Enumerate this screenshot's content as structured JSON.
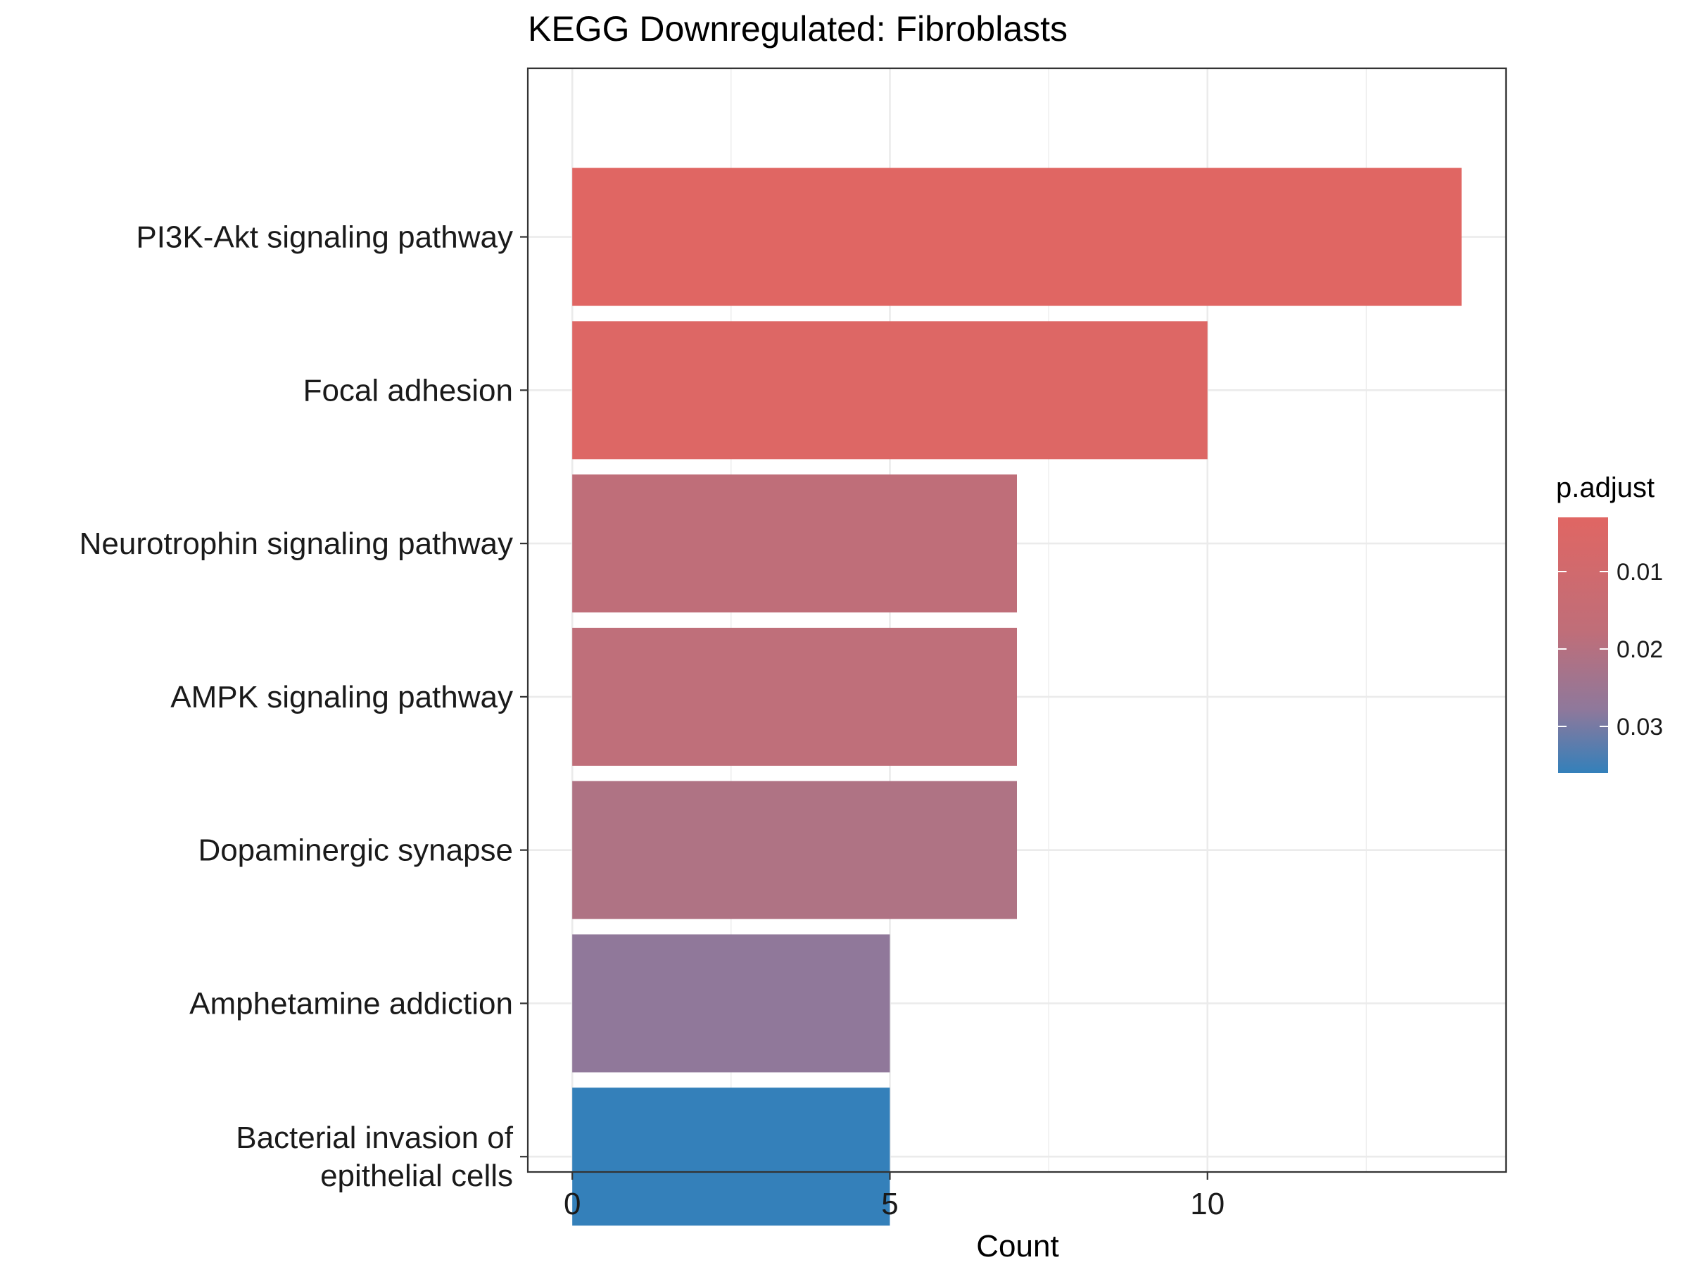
{
  "chart_data": {
    "type": "bar",
    "orientation": "horizontal",
    "title": "KEGG Downregulated: Fibroblasts",
    "xlabel": "Count",
    "ylabel": "",
    "xlim": [
      -0.7,
      14.7
    ],
    "x_ticks": [
      0,
      5,
      10
    ],
    "grid": true,
    "categories": [
      "PI3K-Akt signaling pathway",
      "Focal adhesion",
      "Neurotrophin signaling pathway",
      "AMPK signaling pathway",
      "Dopaminergic synapse",
      "Amphetamine addiction",
      "Bacterial invasion of\nepithelial cells"
    ],
    "values": [
      14,
      10,
      7,
      7,
      7,
      5,
      5
    ],
    "p_adjust": [
      0.003,
      0.005,
      0.012,
      0.012,
      0.014,
      0.021,
      0.036
    ],
    "colors": [
      "#E06663",
      "#DD6765",
      "#BF6E79",
      "#BF6F7A",
      "#AF7384",
      "#90789A",
      "#3480BA"
    ],
    "legend": {
      "title": "p.adjust",
      "position": "right",
      "ticks": [
        0.01,
        0.02,
        0.03
      ],
      "tick_labels": [
        "0.01",
        "0.02",
        "0.03"
      ],
      "range": [
        0.003,
        0.036
      ],
      "color_low": "#E06663",
      "color_high": "#3480BA"
    }
  }
}
